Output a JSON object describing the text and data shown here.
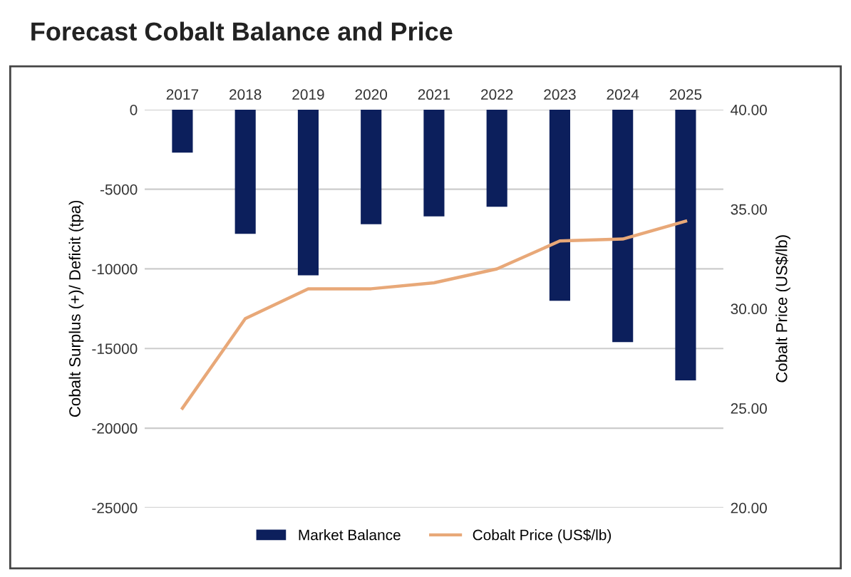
{
  "chart_data": {
    "type": "bar",
    "title": "Forecast Cobalt Balance and Price",
    "categories": [
      "2017",
      "2018",
      "2019",
      "2020",
      "2021",
      "2022",
      "2023",
      "2024",
      "2025"
    ],
    "series": [
      {
        "name": "Market Balance",
        "color": "#0c1f5c",
        "values": [
          -2700,
          -7800,
          -10400,
          -7200,
          -6700,
          -6100,
          -12000,
          -14600,
          -17000
        ]
      },
      {
        "name": "Cobalt Price (US$/lb)",
        "type": "line",
        "axis": "y2",
        "color": "#e8a878",
        "values": [
          25.0,
          29.5,
          31.0,
          31.0,
          31.3,
          32.0,
          33.4,
          33.5,
          34.4
        ]
      }
    ],
    "ylabel": "Cobalt Surplus (+)/ Deficit (tpa)",
    "y2label": "Cobalt Price (US$/lb)",
    "ylim": [
      -25000,
      0
    ],
    "yticks": [
      -25000,
      -20000,
      -15000,
      -10000,
      -5000,
      0
    ],
    "y2lim": [
      20,
      40
    ],
    "y2ticks": [
      {
        "value": 20,
        "label": "20.00"
      },
      {
        "value": 25,
        "label": "25.00"
      },
      {
        "value": 30,
        "label": "30.00"
      },
      {
        "value": 35,
        "label": "35.00"
      },
      {
        "value": 40,
        "label": "40.00"
      }
    ],
    "grid": "y",
    "legend": "bottom"
  }
}
